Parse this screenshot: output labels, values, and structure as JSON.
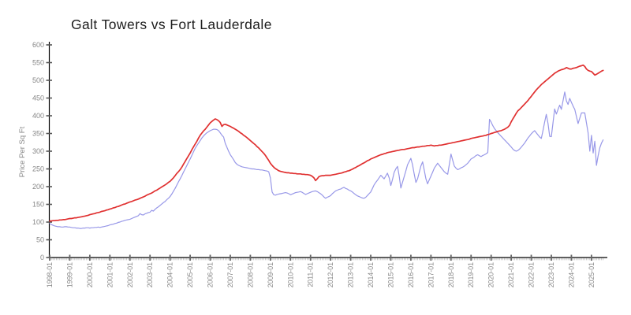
{
  "chart_data": {
    "type": "line",
    "title": "Galt Towers vs Fort Lauderdale",
    "xlabel": "",
    "ylabel": "Price Per Sq Ft",
    "x_start": "1998-01",
    "x_frequency": "monthly",
    "x_tick_labels": [
      "1998-01",
      "1999-01",
      "2000-01",
      "2001-01",
      "2002-01",
      "2003-01",
      "2004-01",
      "2005-01",
      "2006-01",
      "2007-01",
      "2008-01",
      "2009-01",
      "2010-01",
      "2011-01",
      "2012-01",
      "2013-01",
      "2014-01",
      "2015-01",
      "2016-01",
      "2017-01",
      "2018-01",
      "2019-01",
      "2020-01",
      "2021-01",
      "2022-01",
      "2023-01",
      "2024-01",
      "2025-01"
    ],
    "y_tick_values": [
      0,
      50,
      100,
      150,
      200,
      250,
      300,
      350,
      400,
      450,
      500,
      550,
      600
    ],
    "ylim": [
      0,
      600
    ],
    "grid": false,
    "legend": "none",
    "axis_color": "#000000",
    "tick_label_color": "#868686",
    "title_color": "#1c1c1c",
    "series": [
      {
        "name": "blue",
        "color": "#9898e8",
        "line_width": 1.2,
        "values": [
          96,
          93,
          91,
          89,
          88,
          87,
          87,
          86,
          86,
          87,
          87,
          86,
          86,
          85,
          84,
          84,
          83,
          83,
          82,
          82,
          83,
          83,
          84,
          84,
          83,
          84,
          84,
          85,
          85,
          86,
          85,
          86,
          87,
          88,
          89,
          90,
          92,
          93,
          94,
          96,
          97,
          99,
          100,
          102,
          103,
          105,
          106,
          107,
          108,
          110,
          112,
          114,
          116,
          118,
          124,
          121,
          120,
          123,
          125,
          127,
          128,
          133,
          131,
          136,
          140,
          143,
          147,
          151,
          155,
          158,
          163,
          167,
          172,
          179,
          187,
          195,
          204,
          213,
          222,
          231,
          241,
          250,
          259,
          269,
          278,
          288,
          298,
          308,
          316,
          323,
          330,
          337,
          343,
          348,
          352,
          355,
          358,
          360,
          362,
          362,
          361,
          358,
          352,
          345,
          340,
          322,
          311,
          300,
          290,
          283,
          276,
          268,
          263,
          260,
          258,
          256,
          255,
          254,
          253,
          252,
          251,
          250,
          250,
          249,
          248,
          248,
          247,
          247,
          246,
          245,
          244,
          242,
          225,
          185,
          177,
          176,
          178,
          179,
          180,
          181,
          182,
          183,
          182,
          180,
          177,
          179,
          181,
          183,
          184,
          185,
          186,
          184,
          181,
          178,
          180,
          182,
          184,
          186,
          187,
          188,
          186,
          183,
          180,
          176,
          171,
          167,
          170,
          172,
          175,
          180,
          184,
          188,
          190,
          192,
          193,
          196,
          198,
          195,
          193,
          190,
          188,
          185,
          181,
          177,
          174,
          172,
          170,
          168,
          167,
          170,
          175,
          180,
          185,
          195,
          205,
          212,
          218,
          225,
          232,
          227,
          222,
          230,
          238,
          225,
          203,
          220,
          240,
          250,
          257,
          230,
          196,
          212,
          228,
          245,
          262,
          271,
          280,
          262,
          235,
          212,
          222,
          240,
          258,
          270,
          246,
          222,
          208,
          219,
          230,
          241,
          252,
          259,
          266,
          260,
          254,
          248,
          242,
          238,
          235,
          263,
          292,
          275,
          258,
          252,
          248,
          250,
          253,
          255,
          258,
          262,
          266,
          272,
          278,
          281,
          284,
          288,
          290,
          287,
          285,
          288,
          290,
          293,
          296,
          390,
          382,
          372,
          364,
          358,
          352,
          347,
          342,
          337,
          332,
          327,
          322,
          317,
          312,
          306,
          302,
          300,
          302,
          306,
          311,
          317,
          323,
          330,
          337,
          343,
          349,
          354,
          358,
          352,
          346,
          340,
          336,
          358,
          382,
          404,
          378,
          342,
          341,
          380,
          419,
          405,
          418,
          430,
          418,
          442,
          467,
          442,
          432,
          449,
          438,
          427,
          418,
          398,
          378,
          393,
          408,
          408,
          408,
          380,
          352,
          300,
          345,
          295,
          328,
          260,
          288,
          310,
          323,
          332
        ]
      },
      {
        "name": "red",
        "color": "#e03030",
        "line_width": 1.7,
        "values": [
          103,
          103,
          104,
          104,
          105,
          105,
          106,
          106,
          107,
          107,
          108,
          109,
          110,
          110,
          111,
          112,
          112,
          113,
          114,
          115,
          116,
          117,
          118,
          119,
          121,
          122,
          123,
          124,
          126,
          127,
          128,
          130,
          131,
          132,
          134,
          135,
          137,
          138,
          140,
          141,
          143,
          144,
          146,
          148,
          150,
          151,
          153,
          155,
          157,
          158,
          160,
          162,
          163,
          165,
          167,
          169,
          171,
          173,
          176,
          178,
          180,
          182,
          185,
          188,
          190,
          193,
          196,
          199,
          202,
          205,
          208,
          212,
          215,
          220,
          225,
          231,
          237,
          242,
          248,
          255,
          263,
          271,
          279,
          287,
          295,
          304,
          312,
          320,
          328,
          337,
          345,
          351,
          357,
          362,
          368,
          374,
          380,
          384,
          388,
          391,
          389,
          386,
          381,
          370,
          375,
          376,
          374,
          372,
          370,
          367,
          365,
          362,
          359,
          356,
          352,
          349,
          345,
          342,
          338,
          334,
          330,
          326,
          322,
          318,
          313,
          309,
          304,
          299,
          294,
          288,
          281,
          274,
          266,
          260,
          255,
          251,
          248,
          245,
          243,
          242,
          241,
          240,
          239,
          239,
          238,
          238,
          237,
          237,
          236,
          236,
          236,
          235,
          235,
          234,
          234,
          233,
          232,
          229,
          225,
          217,
          222,
          228,
          230,
          231,
          231,
          232,
          232,
          232,
          232,
          233,
          234,
          235,
          236,
          237,
          238,
          239,
          241,
          242,
          244,
          245,
          247,
          249,
          252,
          254,
          257,
          259,
          262,
          265,
          267,
          270,
          273,
          275,
          278,
          280,
          282,
          284,
          286,
          288,
          290,
          291,
          293,
          294,
          296,
          297,
          298,
          299,
          300,
          301,
          302,
          303,
          304,
          305,
          305,
          306,
          307,
          308,
          309,
          310,
          310,
          311,
          312,
          312,
          313,
          314,
          314,
          315,
          316,
          316,
          317,
          316,
          315,
          316,
          316,
          317,
          317,
          318,
          319,
          320,
          321,
          322,
          323,
          324,
          325,
          326,
          327,
          328,
          329,
          330,
          331,
          332,
          333,
          334,
          336,
          337,
          338,
          339,
          340,
          341,
          342,
          343,
          344,
          345,
          347,
          348,
          350,
          351,
          353,
          354,
          356,
          357,
          358,
          360,
          362,
          365,
          368,
          373,
          383,
          391,
          399,
          407,
          414,
          418,
          423,
          428,
          433,
          438,
          443,
          449,
          455,
          461,
          467,
          473,
          478,
          483,
          488,
          492,
          496,
          500,
          504,
          508,
          512,
          516,
          520,
          523,
          526,
          528,
          530,
          531,
          533,
          536,
          534,
          532,
          532,
          534,
          535,
          536,
          538,
          540,
          541,
          543,
          539,
          532,
          528,
          526,
          525,
          520,
          515,
          517,
          520,
          523,
          526,
          528
        ]
      }
    ]
  }
}
